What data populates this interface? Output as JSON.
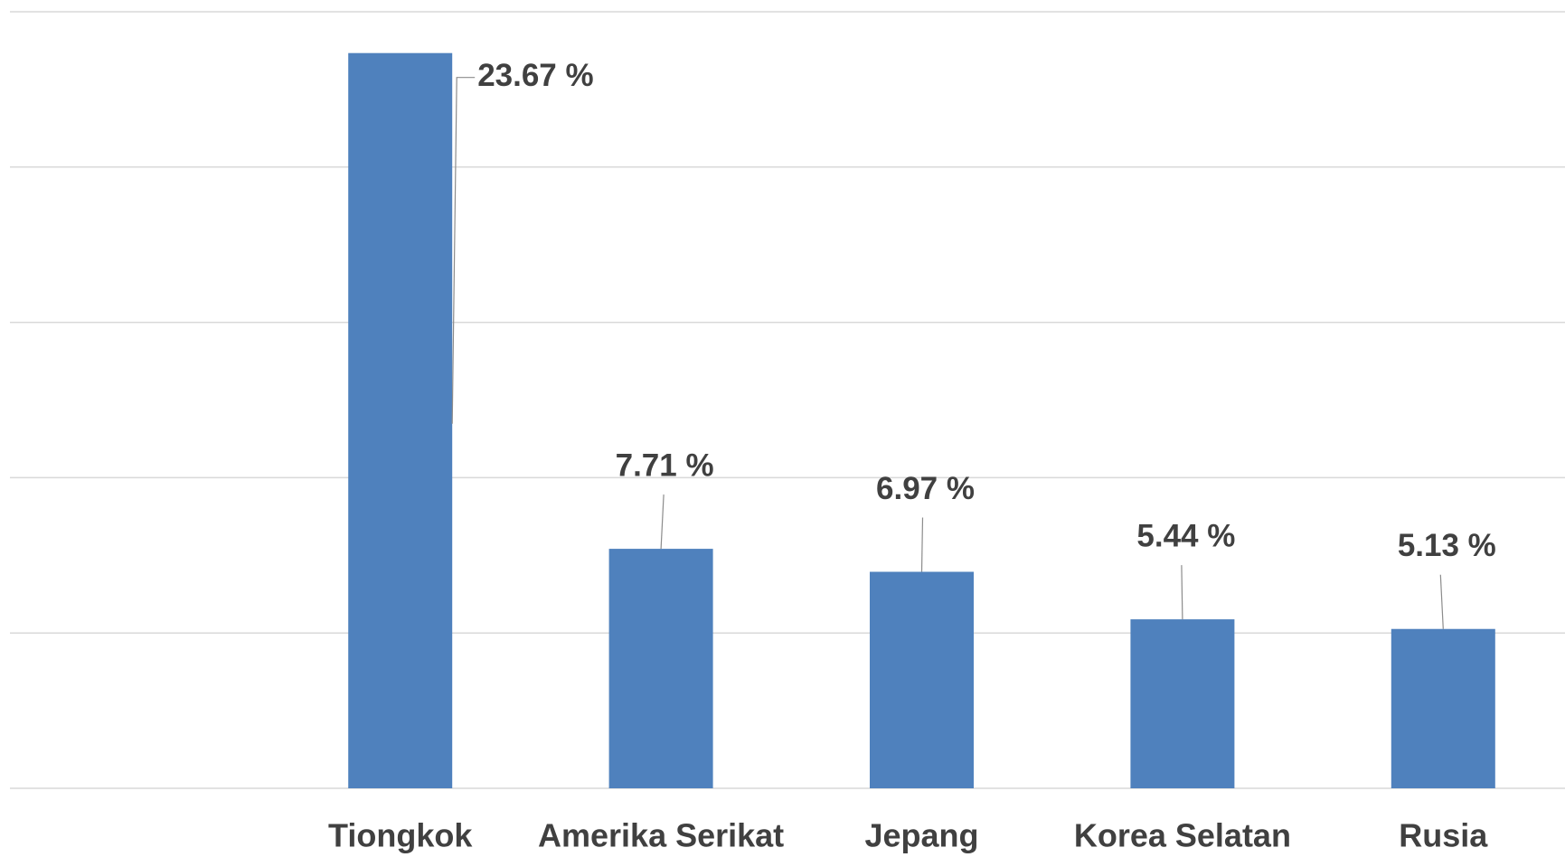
{
  "chart_data": {
    "type": "bar",
    "categories": [
      "Tiongkok",
      "Amerika Serikat",
      "Jepang",
      "Korea Selatan",
      "Rusia"
    ],
    "values": [
      23.67,
      7.71,
      6.97,
      5.44,
      5.13
    ],
    "value_labels": [
      "23.67 %",
      "7.71 %",
      "6.97 %",
      "5.44 %",
      "5.13 %"
    ],
    "color": "#4f81bd",
    "ylim": [
      0,
      25
    ],
    "yticks": [
      0,
      5,
      10,
      15,
      20,
      25
    ],
    "grid": true
  }
}
